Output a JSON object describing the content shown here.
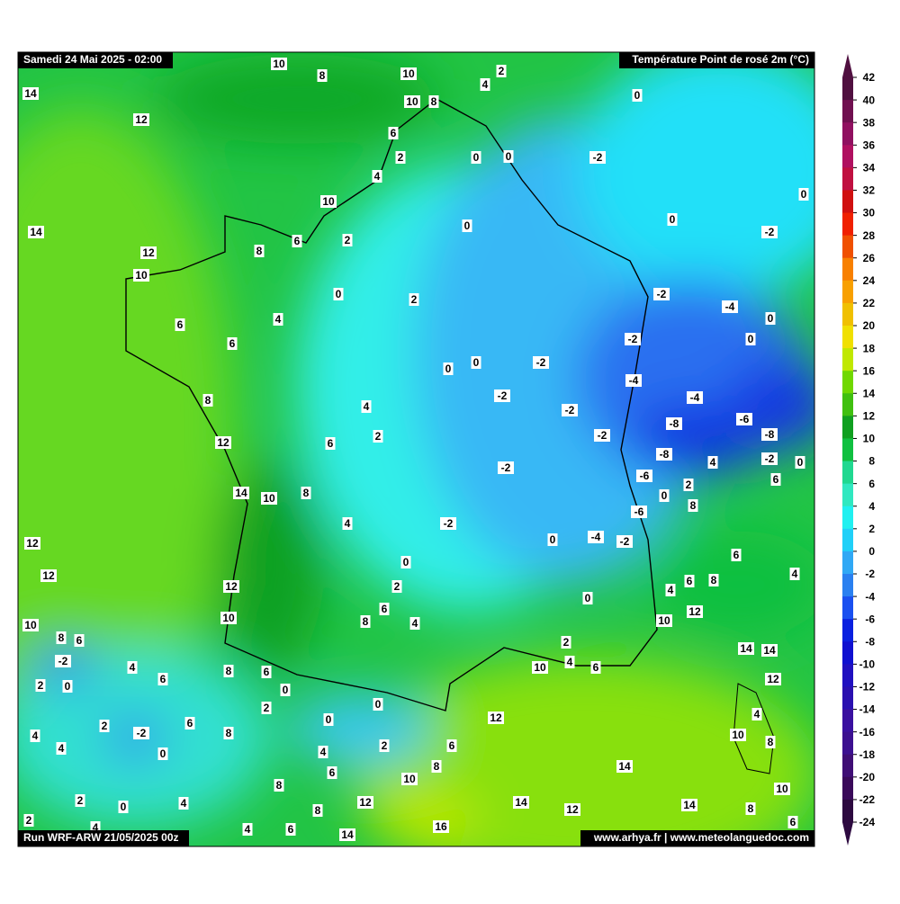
{
  "header": {
    "date": "Samedi 24 Mai 2025 - 02:00",
    "title": "Température Point de rosé 2m (°C)",
    "run": "Run WRF-ARW 21/05/2025 00z",
    "credits": "www.arhya.fr | www.meteolanguedoc.com"
  },
  "colorbar": {
    "ticks": [
      42,
      40,
      38,
      36,
      34,
      32,
      30,
      28,
      26,
      24,
      22,
      20,
      18,
      16,
      14,
      12,
      10,
      8,
      6,
      4,
      2,
      0,
      -2,
      -4,
      -6,
      -8,
      -10,
      -12,
      -14,
      -16,
      -18,
      -20,
      -22,
      -24
    ],
    "colors": [
      "#501040",
      "#701050",
      "#901060",
      "#b01060",
      "#c01040",
      "#d01010",
      "#f02000",
      "#f05000",
      "#f88000",
      "#f8a000",
      "#f0c000",
      "#f0e000",
      "#c0e800",
      "#70d800",
      "#40c010",
      "#10a020",
      "#10c040",
      "#20d890",
      "#30e8c0",
      "#20f0f0",
      "#20d0f8",
      "#30a8f5",
      "#2a80f0",
      "#1a50f0",
      "#0a20e0",
      "#1010d0",
      "#2010c0",
      "#2a10b0",
      "#3a10a0",
      "#3c1090",
      "#3f0e75",
      "#3a0a5a",
      "#2d0a40"
    ]
  },
  "station_labels": [
    10,
    8,
    10,
    2,
    4,
    14,
    10,
    8,
    0,
    12,
    6,
    2,
    0,
    0,
    -2,
    4,
    0,
    10,
    0,
    14,
    2,
    0,
    -2,
    12,
    8,
    6,
    10,
    0,
    2,
    -2,
    -4,
    0,
    6,
    4,
    6,
    -2,
    0,
    0,
    0,
    -2,
    -4,
    8,
    -2,
    -4,
    4,
    -2,
    -8,
    -6,
    2,
    -2,
    -8,
    12,
    6,
    -8,
    4,
    -2,
    0,
    -2,
    -6,
    6,
    14,
    10,
    8,
    2,
    0,
    8,
    -6,
    4,
    -2,
    12,
    0,
    -4,
    -2,
    6,
    0,
    12,
    4,
    12,
    2,
    6,
    8,
    4,
    0,
    6,
    10,
    12,
    8,
    4,
    10,
    10,
    8,
    6,
    14,
    14,
    -2,
    2,
    4,
    10,
    4,
    6,
    8,
    6,
    6,
    12,
    2,
    0,
    0,
    2,
    0,
    0,
    12,
    4,
    2,
    6,
    -2,
    8,
    4,
    10,
    8,
    4,
    0,
    4,
    2,
    6,
    8,
    14,
    6,
    10,
    8,
    10,
    2,
    0,
    4,
    12,
    14,
    8,
    12,
    14,
    8,
    2,
    4,
    16,
    6,
    4,
    6,
    14
  ]
}
